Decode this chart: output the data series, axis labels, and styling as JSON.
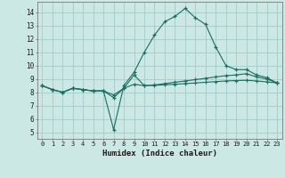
{
  "xlabel": "Humidex (Indice chaleur)",
  "bg_color": "#cce8e4",
  "grid_color": "#aacfcb",
  "line_color": "#1a6e62",
  "x": [
    0,
    1,
    2,
    3,
    4,
    5,
    6,
    7,
    8,
    9,
    10,
    11,
    12,
    13,
    14,
    15,
    16,
    17,
    18,
    19,
    20,
    21,
    22,
    23
  ],
  "line1": [
    8.5,
    8.2,
    8.0,
    8.3,
    8.2,
    8.1,
    8.1,
    5.2,
    8.5,
    9.5,
    11.0,
    12.3,
    13.3,
    13.7,
    14.3,
    13.6,
    13.1,
    11.4,
    10.0,
    9.7,
    9.7,
    9.3,
    9.1,
    8.7
  ],
  "line2": [
    8.5,
    8.2,
    8.0,
    8.3,
    8.2,
    8.1,
    8.1,
    7.6,
    8.3,
    9.3,
    8.5,
    8.55,
    8.65,
    8.75,
    8.85,
    8.95,
    9.05,
    9.15,
    9.25,
    9.3,
    9.4,
    9.15,
    9.0,
    8.7
  ],
  "line3": [
    8.5,
    8.2,
    8.0,
    8.3,
    8.2,
    8.1,
    8.1,
    7.8,
    8.3,
    8.6,
    8.5,
    8.52,
    8.56,
    8.6,
    8.65,
    8.7,
    8.75,
    8.8,
    8.85,
    8.88,
    8.9,
    8.85,
    8.78,
    8.7
  ],
  "ylim": [
    4.5,
    14.8
  ],
  "yticks": [
    5,
    6,
    7,
    8,
    9,
    10,
    11,
    12,
    13,
    14
  ],
  "xticks": [
    0,
    1,
    2,
    3,
    4,
    5,
    6,
    7,
    8,
    9,
    10,
    11,
    12,
    13,
    14,
    15,
    16,
    17,
    18,
    19,
    20,
    21,
    22,
    23
  ],
  "figsize": [
    3.2,
    2.0
  ],
  "dpi": 100
}
